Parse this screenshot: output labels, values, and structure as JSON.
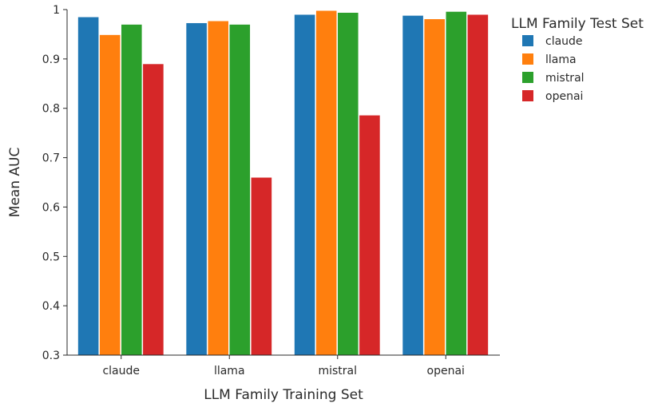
{
  "chart_data": {
    "type": "bar",
    "title": "",
    "xlabel": "LLM Family Training Set",
    "ylabel": "Mean AUC",
    "ylim": [
      0.3,
      1.0
    ],
    "yticks": [
      "0.3",
      "0.4",
      "0.5",
      "0.6",
      "0.7",
      "0.8",
      "0.9",
      "1"
    ],
    "categories": [
      "claude",
      "llama",
      "mistral",
      "openai"
    ],
    "legend_title": "LLM Family Test Set",
    "legend_position": "right",
    "grid": false,
    "series": [
      {
        "name": "claude",
        "color": "#1f77b4",
        "values": [
          0.985,
          0.973,
          0.99,
          0.988
        ]
      },
      {
        "name": "llama",
        "color": "#ff7f0e",
        "values": [
          0.949,
          0.977,
          0.998,
          0.981
        ]
      },
      {
        "name": "mistral",
        "color": "#2ca02c",
        "values": [
          0.97,
          0.97,
          0.994,
          0.996
        ]
      },
      {
        "name": "openai",
        "color": "#d62728",
        "values": [
          0.89,
          0.66,
          0.786,
          0.99
        ]
      }
    ]
  }
}
